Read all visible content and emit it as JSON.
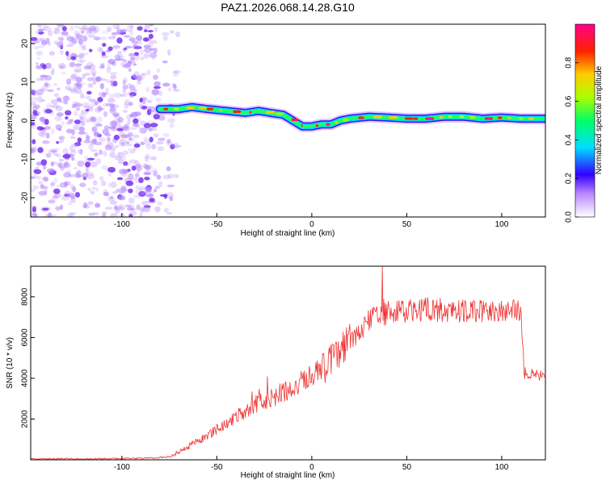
{
  "title": "PAZ1.2026.068.14.28.G10",
  "colors": {
    "signal": "#ff00ff",
    "noise": "#7733ee",
    "snr_line": "#ee3333",
    "axis": "#000000"
  },
  "chart_data": [
    {
      "type": "heatmap",
      "name": "spectrogram",
      "xlabel": "Height of straight line (km)",
      "ylabel": "Frequency (Hz)",
      "xlim": [
        -148,
        123
      ],
      "ylim": [
        -25,
        25
      ],
      "x_ticks": [
        -100,
        -50,
        0,
        50,
        100
      ],
      "y_ticks": [
        -20,
        -10,
        0,
        10,
        20
      ],
      "noise_region_x": [
        -148,
        -70
      ],
      "colorbar": {
        "label": "Normalized spectral amplitude",
        "range": [
          0,
          1
        ],
        "ticks": [
          0.0,
          0.2,
          0.4,
          0.6,
          0.8
        ]
      },
      "signal_trace": {
        "x": [
          -80,
          -70,
          -63,
          -55,
          -45,
          -35,
          -28,
          -22,
          -15,
          -10,
          -5,
          0,
          5,
          10,
          15,
          20,
          30,
          40,
          50,
          60,
          70,
          80,
          90,
          100,
          110,
          123
        ],
        "frequency_hz": [
          3.0,
          3.0,
          3.5,
          3.0,
          2.5,
          2.0,
          2.5,
          2.0,
          1.5,
          0.0,
          -1.5,
          -1.5,
          -1.0,
          -1.0,
          0.0,
          0.5,
          1.0,
          0.8,
          0.5,
          0.5,
          1.0,
          1.0,
          0.5,
          0.8,
          0.5,
          0.5
        ]
      }
    },
    {
      "type": "line",
      "name": "snr",
      "xlabel": "Height of straight line (km)",
      "ylabel": "SNR (10 * v/v)",
      "xlim": [
        -148,
        123
      ],
      "ylim": [
        0,
        9500
      ],
      "x_ticks": [
        -100,
        -50,
        0,
        50,
        100
      ],
      "y_ticks": [
        2000,
        4000,
        6000,
        8000
      ],
      "envelope": {
        "x": [
          -148,
          -110,
          -85,
          -75,
          -70,
          -60,
          -50,
          -40,
          -30,
          -20,
          -10,
          0,
          10,
          20,
          25,
          30,
          35,
          40,
          50,
          60,
          70,
          80,
          90,
          100,
          108,
          110,
          112,
          120,
          123
        ],
        "y": [
          50,
          50,
          80,
          150,
          400,
          900,
          1500,
          2100,
          2700,
          3100,
          3500,
          4100,
          4900,
          5800,
          6300,
          6800,
          7100,
          7200,
          7300,
          7400,
          7350,
          7300,
          7300,
          7300,
          7300,
          7200,
          4300,
          4100,
          4000
        ]
      },
      "peak": {
        "x": 37,
        "y": 9500
      }
    }
  ]
}
